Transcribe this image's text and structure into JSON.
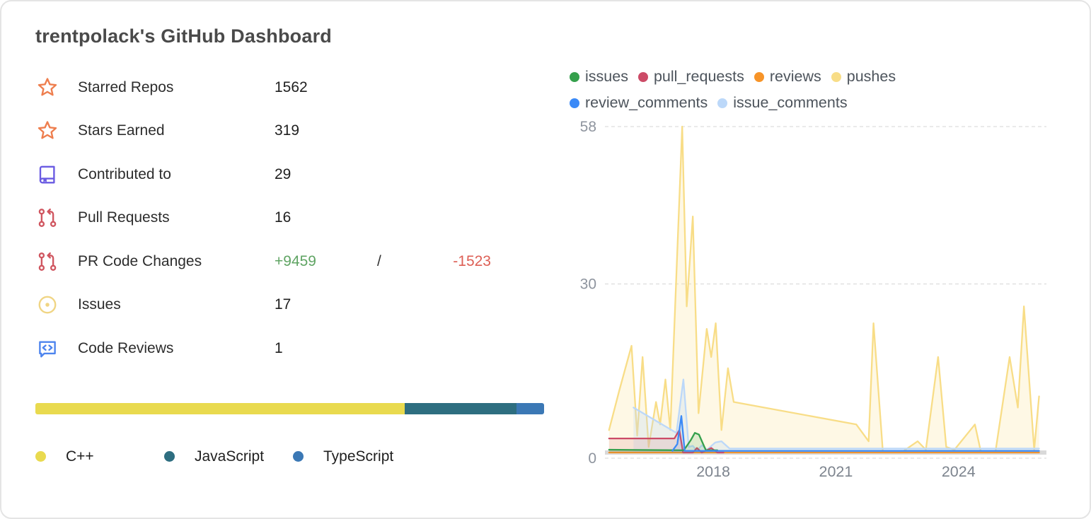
{
  "title": "trentpolack's GitHub Dashboard",
  "stats": [
    {
      "icon": "star-icon",
      "label": "Starred Repos",
      "value": "1562"
    },
    {
      "icon": "star-icon",
      "label": "Stars Earned",
      "value": "319"
    },
    {
      "icon": "book-icon",
      "label": "Contributed to",
      "value": "29"
    },
    {
      "icon": "pull-request-icon",
      "label": "Pull Requests",
      "value": "16"
    },
    {
      "icon": "pull-request-icon",
      "label": "PR Code Changes",
      "additions": "+9459",
      "separator": "/",
      "deletions": "-1523"
    },
    {
      "icon": "issue-icon",
      "label": "Issues",
      "value": "17"
    },
    {
      "icon": "code-review-icon",
      "label": "Code Reviews",
      "value": "1"
    }
  ],
  "colors": {
    "additions": "#5fa463",
    "deletions": "#dd5f55",
    "star_icon": "#ee7e4e",
    "book_icon": "#6a5be2",
    "pull_request_icon": "#d05660",
    "issue_icon": "#f0d584",
    "code_review_icon": "#4d84ee"
  },
  "languages": [
    {
      "name": "C++",
      "percent": 72.6,
      "color": "#e9da4f"
    },
    {
      "name": "JavaScript",
      "percent": 22.0,
      "color": "#2e6e80"
    },
    {
      "name": "TypeScript",
      "percent": 5.4,
      "color": "#3b78b5"
    }
  ],
  "chart_data": {
    "type": "line",
    "title": "",
    "xlabel": "",
    "ylabel": "",
    "x_domain": [
      2015.35,
      2026.15
    ],
    "ylim": [
      0,
      58
    ],
    "yticks": [
      0,
      30,
      58
    ],
    "xticks": [
      2018,
      2021,
      2024
    ],
    "grid": "dashed-horizontal",
    "legend_position": "top",
    "axis_text_color": "#8e949e",
    "grid_color": "#e3e3e3",
    "baseline_band_color": "#d9d9d9",
    "series": [
      {
        "name": "issues",
        "color": "#35a04c",
        "fill": "rgba(53,160,76,0.15)",
        "points": [
          [
            2015.45,
            0.5
          ],
          [
            2017.28,
            0.4
          ],
          [
            2017.45,
            2.2
          ],
          [
            2017.55,
            3.5
          ],
          [
            2017.65,
            3.2
          ],
          [
            2017.82,
            0.4
          ],
          [
            2018.1,
            0.4
          ]
        ]
      },
      {
        "name": "pull_requests",
        "color": "#cc4b67",
        "fill": "rgba(204,75,103,0.13)",
        "points": [
          [
            2015.45,
            2.5
          ],
          [
            2016.5,
            2.5
          ],
          [
            2017.05,
            2.5
          ],
          [
            2017.17,
            4
          ],
          [
            2017.26,
            0
          ],
          [
            2017.5,
            0
          ],
          [
            2017.6,
            0.8
          ],
          [
            2017.72,
            0
          ],
          [
            2017.95,
            0.8
          ],
          [
            2018.1,
            0
          ],
          [
            2018.25,
            0
          ]
        ]
      },
      {
        "name": "reviews",
        "color": "#f79428",
        "fill": "none",
        "points": [
          [
            2015.45,
            0
          ],
          [
            2025.97,
            0
          ]
        ]
      },
      {
        "name": "pushes",
        "color": "#f8dd87",
        "fill": "rgba(250,227,150,0.25)",
        "points": [
          [
            2015.45,
            4
          ],
          [
            2015.7,
            11
          ],
          [
            2016.0,
            19
          ],
          [
            2016.14,
            3
          ],
          [
            2016.27,
            17
          ],
          [
            2016.42,
            1
          ],
          [
            2016.6,
            9
          ],
          [
            2016.7,
            5
          ],
          [
            2016.83,
            13
          ],
          [
            2016.95,
            4
          ],
          [
            2017.1,
            32
          ],
          [
            2017.24,
            58
          ],
          [
            2017.35,
            26
          ],
          [
            2017.5,
            42
          ],
          [
            2017.64,
            7
          ],
          [
            2017.84,
            22
          ],
          [
            2017.95,
            17
          ],
          [
            2018.06,
            23
          ],
          [
            2018.2,
            4
          ],
          [
            2018.36,
            15
          ],
          [
            2018.5,
            9
          ],
          [
            2021.5,
            5
          ],
          [
            2021.8,
            2
          ],
          [
            2021.92,
            23
          ],
          [
            2022.15,
            0
          ],
          [
            2022.6,
            0
          ],
          [
            2023.0,
            2
          ],
          [
            2023.2,
            0.5
          ],
          [
            2023.5,
            17
          ],
          [
            2023.7,
            1
          ],
          [
            2023.9,
            0.5
          ],
          [
            2024.4,
            5
          ],
          [
            2024.55,
            0
          ],
          [
            2024.9,
            0
          ],
          [
            2025.25,
            17
          ],
          [
            2025.45,
            8
          ],
          [
            2025.6,
            26
          ],
          [
            2025.85,
            0.5
          ],
          [
            2025.97,
            10
          ]
        ]
      },
      {
        "name": "review_comments",
        "color": "#3b8af7",
        "fill": "rgba(59,138,247,0.12)",
        "points": [
          [
            2017.0,
            0.3
          ],
          [
            2017.12,
            1.5
          ],
          [
            2017.22,
            6.5
          ],
          [
            2017.3,
            0.3
          ],
          [
            2020.0,
            0.3
          ],
          [
            2025.97,
            0.3
          ]
        ]
      },
      {
        "name": "issue_comments",
        "color": "#bcd8f9",
        "fill": "rgba(188,216,249,0.28)",
        "points": [
          [
            2016.05,
            8
          ],
          [
            2017.1,
            3.5
          ],
          [
            2017.27,
            13
          ],
          [
            2017.4,
            1
          ],
          [
            2017.5,
            1.2
          ],
          [
            2017.6,
            0.3
          ],
          [
            2017.72,
            1.3
          ],
          [
            2017.85,
            0.5
          ],
          [
            2018.05,
            1.8
          ],
          [
            2018.2,
            2
          ],
          [
            2018.4,
            0.7
          ],
          [
            2020.0,
            0.7
          ],
          [
            2025.97,
            0.7
          ]
        ]
      }
    ],
    "draw_order": [
      "pushes",
      "issue_comments",
      "reviews",
      "pull_requests",
      "issues",
      "review_comments"
    ]
  }
}
